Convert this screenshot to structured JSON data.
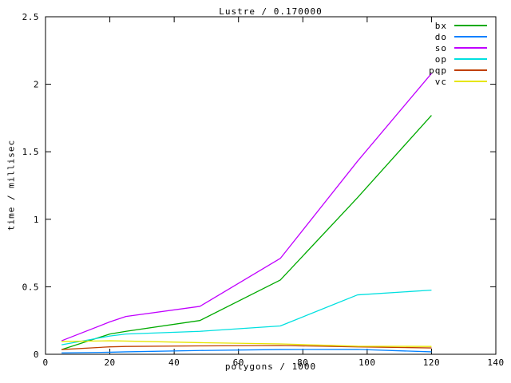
{
  "title": "Lustre / 0.170000",
  "colors": {
    "background": "#ffffff",
    "axis": "#000000",
    "text": "#000000"
  },
  "x_axis": {
    "label": "polygons / 1000",
    "min": 0,
    "max": 140,
    "ticks": [
      [
        0,
        "0"
      ],
      [
        20,
        "20"
      ],
      [
        40,
        "40"
      ],
      [
        60,
        "60"
      ],
      [
        80,
        "80"
      ],
      [
        100,
        "100"
      ],
      [
        120,
        "120"
      ],
      [
        140,
        "140"
      ]
    ]
  },
  "y_axis": {
    "label": "time / millisec",
    "min": 0,
    "max": 2.5,
    "ticks": [
      [
        0,
        "0"
      ],
      [
        0.5,
        "0.5"
      ],
      [
        1,
        "1"
      ],
      [
        1.5,
        "1.5"
      ],
      [
        2,
        "2"
      ],
      [
        2.5,
        "2.5"
      ]
    ]
  },
  "legend": {
    "position": "top-right inside plot"
  },
  "chart_data": {
    "type": "line",
    "title": "Lustre / 0.170000",
    "xlabel": "polygons / 1000",
    "ylabel": "time / millisec",
    "xlim": [
      0,
      140
    ],
    "ylim": [
      0,
      2.5
    ],
    "grid": false,
    "legend_position": "top-right inside plot",
    "x": [
      5,
      20,
      25,
      48,
      73,
      97,
      120
    ],
    "series": [
      {
        "name": "bx",
        "color": "#00aa00",
        "values": [
          0.035,
          0.15,
          0.17,
          0.25,
          0.55,
          1.16,
          1.77
        ]
      },
      {
        "name": "do",
        "color": "#0080ff",
        "values": [
          0.01,
          0.015,
          0.018,
          0.028,
          0.035,
          0.036,
          0.018
        ]
      },
      {
        "name": "so",
        "color": "#c000ff",
        "values": [
          0.1,
          0.24,
          0.28,
          0.355,
          0.71,
          1.43,
          2.08
        ]
      },
      {
        "name": "op",
        "color": "#00e0e0",
        "values": [
          0.07,
          0.135,
          0.15,
          0.17,
          0.21,
          0.44,
          0.475
        ]
      },
      {
        "name": "pqp",
        "color": "#c04000",
        "values": [
          0.035,
          0.055,
          0.058,
          0.062,
          0.065,
          0.055,
          0.047
        ]
      },
      {
        "name": "vc",
        "color": "#e6e600",
        "values": [
          0.095,
          0.1,
          0.098,
          0.086,
          0.077,
          0.06,
          0.058
        ]
      }
    ]
  }
}
